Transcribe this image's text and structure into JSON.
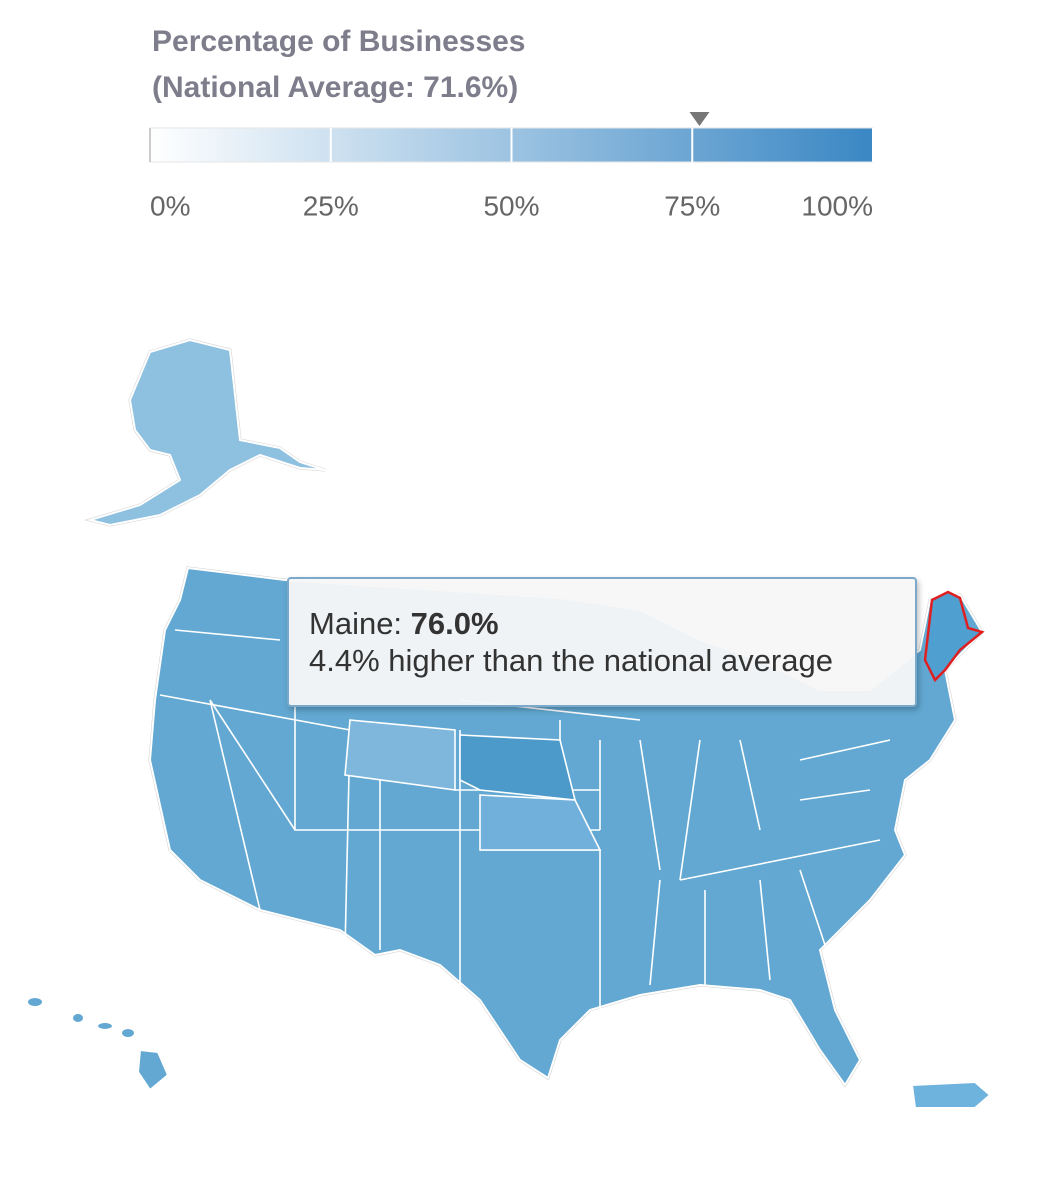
{
  "legend": {
    "title": "Percentage of Businesses",
    "subtitle": "(National Average: 71.6%)",
    "scale": {
      "min": 0,
      "max": 100,
      "colors": [
        "#ffffff",
        "#3a87c4"
      ],
      "ticks": [
        {
          "value": 0,
          "label": "0%"
        },
        {
          "value": 25,
          "label": "25%"
        },
        {
          "value": 50,
          "label": "50%"
        },
        {
          "value": 75,
          "label": "75%"
        },
        {
          "value": 100,
          "label": "100%"
        }
      ]
    }
  },
  "tooltip": {
    "state": "Maine:",
    "value": 76.0,
    "value_label": "76.0%",
    "note": "4.4% higher than the national average"
  }
}
